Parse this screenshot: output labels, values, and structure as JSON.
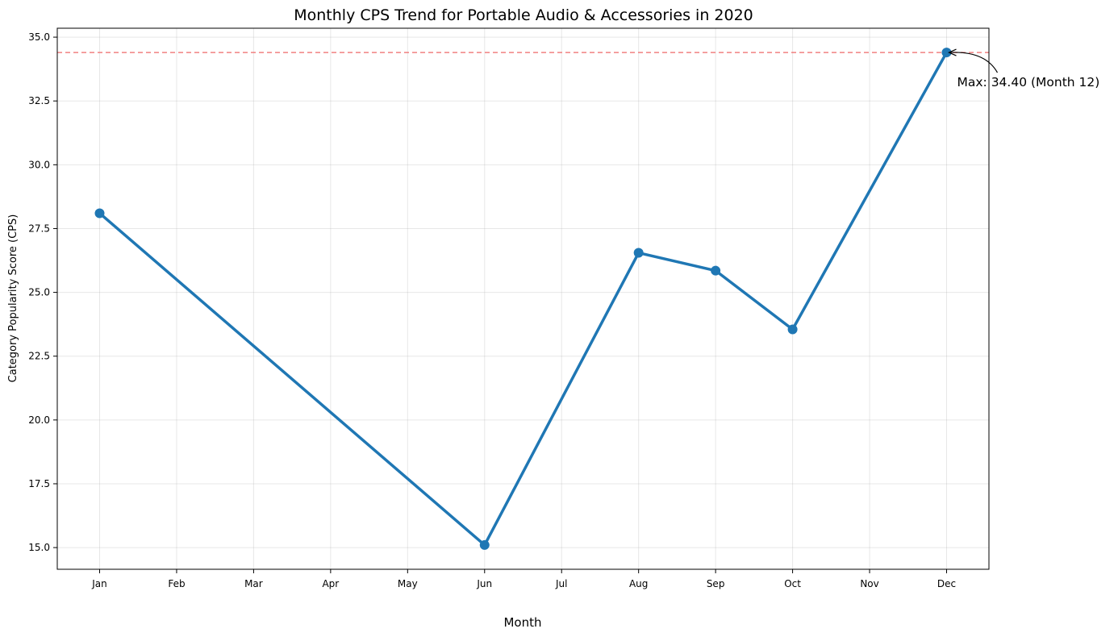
{
  "chart_data": {
    "type": "line",
    "title": "Monthly CPS Trend for Portable Audio & Accessories in 2020",
    "xlabel": "Month",
    "ylabel": "Category Popularity Score (CPS)",
    "categories": [
      "Jan",
      "Feb",
      "Mar",
      "Apr",
      "May",
      "Jun",
      "Jul",
      "Aug",
      "Sep",
      "Oct",
      "Nov",
      "Dec"
    ],
    "x": [
      1,
      6,
      8,
      9,
      10,
      12
    ],
    "y": [
      28.1,
      15.1,
      26.55,
      25.85,
      23.55,
      34.4
    ],
    "xlim": [
      0.45,
      12.55
    ],
    "ylim": [
      14.15,
      35.35
    ],
    "yticks": [
      "15.0",
      "17.5",
      "20.0",
      "22.5",
      "25.0",
      "27.5",
      "30.0",
      "32.5",
      "35.0"
    ],
    "ytick_values": [
      15.0,
      17.5,
      20.0,
      22.5,
      25.0,
      27.5,
      30.0,
      32.5,
      35.0
    ],
    "grid": true,
    "line_color": "#1f77b4",
    "reference_line": {
      "y": 34.4,
      "color": "#f08080",
      "style": "dashed"
    },
    "annotation": {
      "text": "Max: 34.40 (Month 12)",
      "x": 12,
      "y": 34.4
    }
  }
}
